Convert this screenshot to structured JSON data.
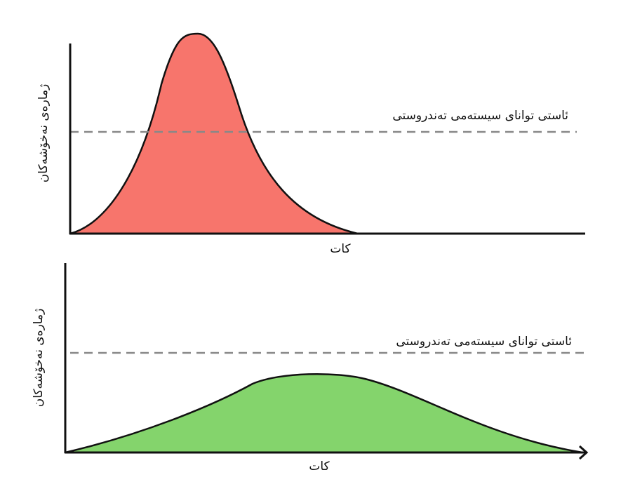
{
  "panels": [
    {
      "y_label": "ژمارەی نەخۆشەکان",
      "line_label": "ئاستی توانای سیستەمی تەندروستی",
      "x_label": "کات"
    },
    {
      "y_label": "ژمارەی نەخۆشەکان",
      "line_label": "ئاستی توانای سیستەمی تەندروستی",
      "x_label": "کات"
    }
  ]
}
